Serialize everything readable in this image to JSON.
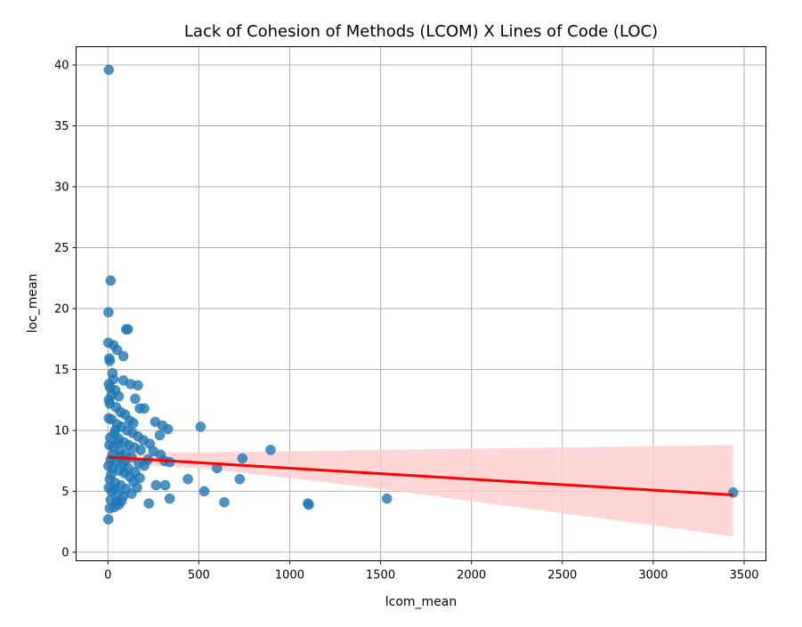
{
  "chart_data": {
    "type": "scatter",
    "title": "Lack of Cohesion of Methods (LCOM) X Lines of Code (LOC)",
    "xlabel": "lcom_mean",
    "ylabel": "loc_mean",
    "xlim": [
      -175,
      3620
    ],
    "ylim": [
      -0.7,
      41.5
    ],
    "xticks": [
      0,
      500,
      1000,
      1500,
      2000,
      2500,
      3000,
      3500
    ],
    "yticks": [
      0,
      5,
      10,
      15,
      20,
      25,
      30,
      35,
      40
    ],
    "grid": true,
    "colors": {
      "points": "#1f77b4",
      "regression_line": "#ff0000",
      "confidence_band": "#ffcccc"
    },
    "points": [
      {
        "x": 5,
        "y": 39.6
      },
      {
        "x": 15,
        "y": 22.3
      },
      {
        "x": 3,
        "y": 19.7
      },
      {
        "x": 2,
        "y": 17.2
      },
      {
        "x": 30,
        "y": 17.0
      },
      {
        "x": 50,
        "y": 16.6
      },
      {
        "x": 85,
        "y": 16.1
      },
      {
        "x": 8,
        "y": 15.9
      },
      {
        "x": 10,
        "y": 15.7
      },
      {
        "x": 100,
        "y": 18.3
      },
      {
        "x": 110,
        "y": 18.3
      },
      {
        "x": 25,
        "y": 14.7
      },
      {
        "x": 30,
        "y": 14.2
      },
      {
        "x": 85,
        "y": 14.1
      },
      {
        "x": 125,
        "y": 13.8
      },
      {
        "x": 165,
        "y": 13.7
      },
      {
        "x": 5,
        "y": 13.8
      },
      {
        "x": 12,
        "y": 13.5
      },
      {
        "x": 40,
        "y": 13.3
      },
      {
        "x": 60,
        "y": 12.8
      },
      {
        "x": 20,
        "y": 12.9
      },
      {
        "x": 150,
        "y": 12.6
      },
      {
        "x": 175,
        "y": 11.8
      },
      {
        "x": 200,
        "y": 11.8
      },
      {
        "x": 10,
        "y": 12.2
      },
      {
        "x": 45,
        "y": 11.9
      },
      {
        "x": 70,
        "y": 11.5
      },
      {
        "x": 95,
        "y": 11.3
      },
      {
        "x": 120,
        "y": 10.8
      },
      {
        "x": 140,
        "y": 10.6
      },
      {
        "x": 260,
        "y": 10.7
      },
      {
        "x": 300,
        "y": 10.4
      },
      {
        "x": 330,
        "y": 10.1
      },
      {
        "x": 510,
        "y": 10.3
      },
      {
        "x": 285,
        "y": 9.6
      },
      {
        "x": 230,
        "y": 8.9
      },
      {
        "x": 195,
        "y": 9.2
      },
      {
        "x": 165,
        "y": 9.5
      },
      {
        "x": 135,
        "y": 9.8
      },
      {
        "x": 105,
        "y": 10.0
      },
      {
        "x": 75,
        "y": 10.3
      },
      {
        "x": 50,
        "y": 10.5
      },
      {
        "x": 20,
        "y": 10.9
      },
      {
        "x": 5,
        "y": 11.0
      },
      {
        "x": 35,
        "y": 9.7
      },
      {
        "x": 60,
        "y": 9.3
      },
      {
        "x": 90,
        "y": 9.0
      },
      {
        "x": 115,
        "y": 8.8
      },
      {
        "x": 145,
        "y": 8.6
      },
      {
        "x": 180,
        "y": 8.4
      },
      {
        "x": 250,
        "y": 8.3
      },
      {
        "x": 290,
        "y": 8.0
      },
      {
        "x": 310,
        "y": 7.5
      },
      {
        "x": 340,
        "y": 7.4
      },
      {
        "x": 740,
        "y": 7.7
      },
      {
        "x": 895,
        "y": 8.4
      },
      {
        "x": 600,
        "y": 6.9
      },
      {
        "x": 220,
        "y": 7.6
      },
      {
        "x": 200,
        "y": 7.1
      },
      {
        "x": 170,
        "y": 7.3
      },
      {
        "x": 130,
        "y": 7.8
      },
      {
        "x": 100,
        "y": 8.1
      },
      {
        "x": 65,
        "y": 8.3
      },
      {
        "x": 30,
        "y": 8.6
      },
      {
        "x": 8,
        "y": 8.8
      },
      {
        "x": 15,
        "y": 7.6
      },
      {
        "x": 45,
        "y": 7.4
      },
      {
        "x": 80,
        "y": 7.2
      },
      {
        "x": 110,
        "y": 6.9
      },
      {
        "x": 150,
        "y": 6.6
      },
      {
        "x": 175,
        "y": 6.1
      },
      {
        "x": 140,
        "y": 5.8
      },
      {
        "x": 120,
        "y": 6.2
      },
      {
        "x": 90,
        "y": 6.5
      },
      {
        "x": 60,
        "y": 6.7
      },
      {
        "x": 25,
        "y": 6.9
      },
      {
        "x": 3,
        "y": 7.1
      },
      {
        "x": 10,
        "y": 6.0
      },
      {
        "x": 40,
        "y": 5.7
      },
      {
        "x": 70,
        "y": 5.5
      },
      {
        "x": 100,
        "y": 5.2
      },
      {
        "x": 160,
        "y": 5.3
      },
      {
        "x": 265,
        "y": 5.5
      },
      {
        "x": 315,
        "y": 5.5
      },
      {
        "x": 440,
        "y": 6.0
      },
      {
        "x": 725,
        "y": 6.0
      },
      {
        "x": 530,
        "y": 5.0
      },
      {
        "x": 130,
        "y": 4.8
      },
      {
        "x": 85,
        "y": 4.6
      },
      {
        "x": 55,
        "y": 4.8
      },
      {
        "x": 20,
        "y": 5.0
      },
      {
        "x": 5,
        "y": 5.3
      },
      {
        "x": 15,
        "y": 4.3
      },
      {
        "x": 45,
        "y": 4.1
      },
      {
        "x": 75,
        "y": 4.2
      },
      {
        "x": 225,
        "y": 4.0
      },
      {
        "x": 340,
        "y": 4.4
      },
      {
        "x": 640,
        "y": 4.1
      },
      {
        "x": 1100,
        "y": 4.0
      },
      {
        "x": 1105,
        "y": 3.9
      },
      {
        "x": 1535,
        "y": 4.4
      },
      {
        "x": 3440,
        "y": 4.9
      },
      {
        "x": 35,
        "y": 3.7
      },
      {
        "x": 10,
        "y": 3.6
      },
      {
        "x": 2,
        "y": 2.7
      },
      {
        "x": 60,
        "y": 3.9
      },
      {
        "x": 25,
        "y": 8.0
      },
      {
        "x": 55,
        "y": 9.0
      },
      {
        "x": 40,
        "y": 10.0
      },
      {
        "x": 12,
        "y": 9.4
      },
      {
        "x": 5,
        "y": 12.5
      },
      {
        "x": 18,
        "y": 6.4
      },
      {
        "x": 35,
        "y": 5.2
      },
      {
        "x": 65,
        "y": 7.9
      },
      {
        "x": 95,
        "y": 7.5
      }
    ],
    "regression": {
      "x": [
        0,
        3440
      ],
      "y": [
        7.8,
        4.7
      ],
      "ci_x": [
        0,
        500,
        1000,
        1500,
        2000,
        2500,
        3000,
        3440
      ],
      "ci_lower": [
        7.3,
        6.9,
        6.1,
        5.2,
        4.2,
        3.2,
        2.2,
        1.3
      ],
      "ci_upper": [
        8.2,
        8.2,
        8.3,
        8.4,
        8.5,
        8.6,
        8.7,
        8.8
      ]
    }
  }
}
